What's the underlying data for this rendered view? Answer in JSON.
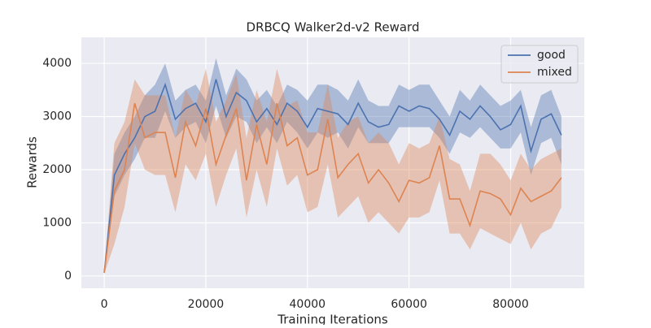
{
  "chart_data": {
    "type": "line",
    "title": "DRBCQ Walker2d-v2 Reward",
    "x_label": "Training Iterations",
    "y_label": "Rewards",
    "x": [
      0,
      2000,
      4000,
      6000,
      8000,
      10000,
      12000,
      14000,
      16000,
      18000,
      20000,
      22000,
      24000,
      26000,
      28000,
      30000,
      32000,
      34000,
      36000,
      38000,
      40000,
      42000,
      44000,
      46000,
      48000,
      50000,
      52000,
      54000,
      56000,
      58000,
      60000,
      62000,
      64000,
      66000,
      68000,
      70000,
      72000,
      74000,
      76000,
      78000,
      80000,
      82000,
      84000,
      86000,
      88000,
      90000
    ],
    "series": [
      {
        "name": "good",
        "color": "#4c72b0",
        "values": [
          60,
          1900,
          2300,
          2600,
          3000,
          3100,
          3600,
          2950,
          3150,
          3250,
          2900,
          3700,
          3000,
          3450,
          3300,
          2900,
          3150,
          2850,
          3250,
          3100,
          2800,
          3150,
          3100,
          3050,
          2850,
          3250,
          2900,
          2800,
          2850,
          3200,
          3100,
          3200,
          3150,
          2950,
          2650,
          3100,
          2950,
          3200,
          3000,
          2750,
          2850,
          3200,
          2350,
          2950,
          3050,
          2650
        ],
        "lower": [
          40,
          1500,
          1900,
          2200,
          2600,
          2600,
          3100,
          2600,
          2800,
          2900,
          2500,
          3200,
          2600,
          3000,
          2900,
          2500,
          2800,
          2500,
          2900,
          2700,
          2400,
          2700,
          2600,
          2700,
          2400,
          2800,
          2500,
          2500,
          2500,
          2800,
          2800,
          2800,
          2800,
          2600,
          2300,
          2700,
          2600,
          2800,
          2600,
          2400,
          2400,
          2700,
          1900,
          2500,
          2600,
          2100
        ],
        "upper": [
          80,
          2300,
          2700,
          3000,
          3400,
          3600,
          4000,
          3300,
          3500,
          3600,
          3300,
          4100,
          3400,
          3900,
          3700,
          3300,
          3500,
          3200,
          3600,
          3500,
          3300,
          3600,
          3600,
          3500,
          3300,
          3700,
          3300,
          3200,
          3200,
          3600,
          3500,
          3600,
          3600,
          3300,
          3000,
          3500,
          3300,
          3600,
          3400,
          3200,
          3300,
          3500,
          2800,
          3400,
          3500,
          3000
        ]
      },
      {
        "name": "mixed",
        "color": "#dd8452",
        "values": [
          60,
          1600,
          2000,
          3250,
          2600,
          2700,
          2700,
          1850,
          2900,
          2450,
          3150,
          2100,
          2650,
          3150,
          1800,
          2850,
          2100,
          3250,
          2450,
          2600,
          1900,
          2000,
          2950,
          1850,
          2100,
          2300,
          1750,
          2000,
          1750,
          1400,
          1800,
          1750,
          1850,
          2450,
          1450,
          1450,
          950,
          1600,
          1550,
          1450,
          1150,
          1650,
          1400,
          1500,
          1600,
          1850
        ],
        "lower": [
          40,
          600,
          1300,
          2500,
          2000,
          1900,
          1900,
          1200,
          2100,
          1800,
          2300,
          1300,
          1900,
          2400,
          1100,
          2000,
          1300,
          2400,
          1700,
          1900,
          1200,
          1300,
          2100,
          1100,
          1300,
          1500,
          1000,
          1200,
          1000,
          800,
          1100,
          1100,
          1200,
          1800,
          800,
          800,
          500,
          900,
          800,
          700,
          600,
          1000,
          500,
          800,
          900,
          1300
        ],
        "upper": [
          80,
          2500,
          2900,
          3700,
          3400,
          3400,
          3400,
          2600,
          3500,
          3200,
          3900,
          2900,
          3300,
          3800,
          2600,
          3500,
          2900,
          3900,
          3200,
          3300,
          2700,
          2700,
          3600,
          2600,
          2900,
          3000,
          2500,
          2700,
          2500,
          2100,
          2500,
          2400,
          2500,
          3000,
          2200,
          2100,
          1600,
          2300,
          2300,
          2100,
          1800,
          2300,
          2000,
          2200,
          2300,
          2400
        ]
      }
    ],
    "xlim": [
      -4500,
      94500
    ],
    "ylim": [
      -230,
      4490
    ],
    "xticks": [
      0,
      20000,
      40000,
      60000,
      80000
    ],
    "yticks": [
      0,
      1000,
      2000,
      3000,
      4000
    ],
    "grid": true,
    "legend": "upper right",
    "background": "#eaeaf2"
  }
}
